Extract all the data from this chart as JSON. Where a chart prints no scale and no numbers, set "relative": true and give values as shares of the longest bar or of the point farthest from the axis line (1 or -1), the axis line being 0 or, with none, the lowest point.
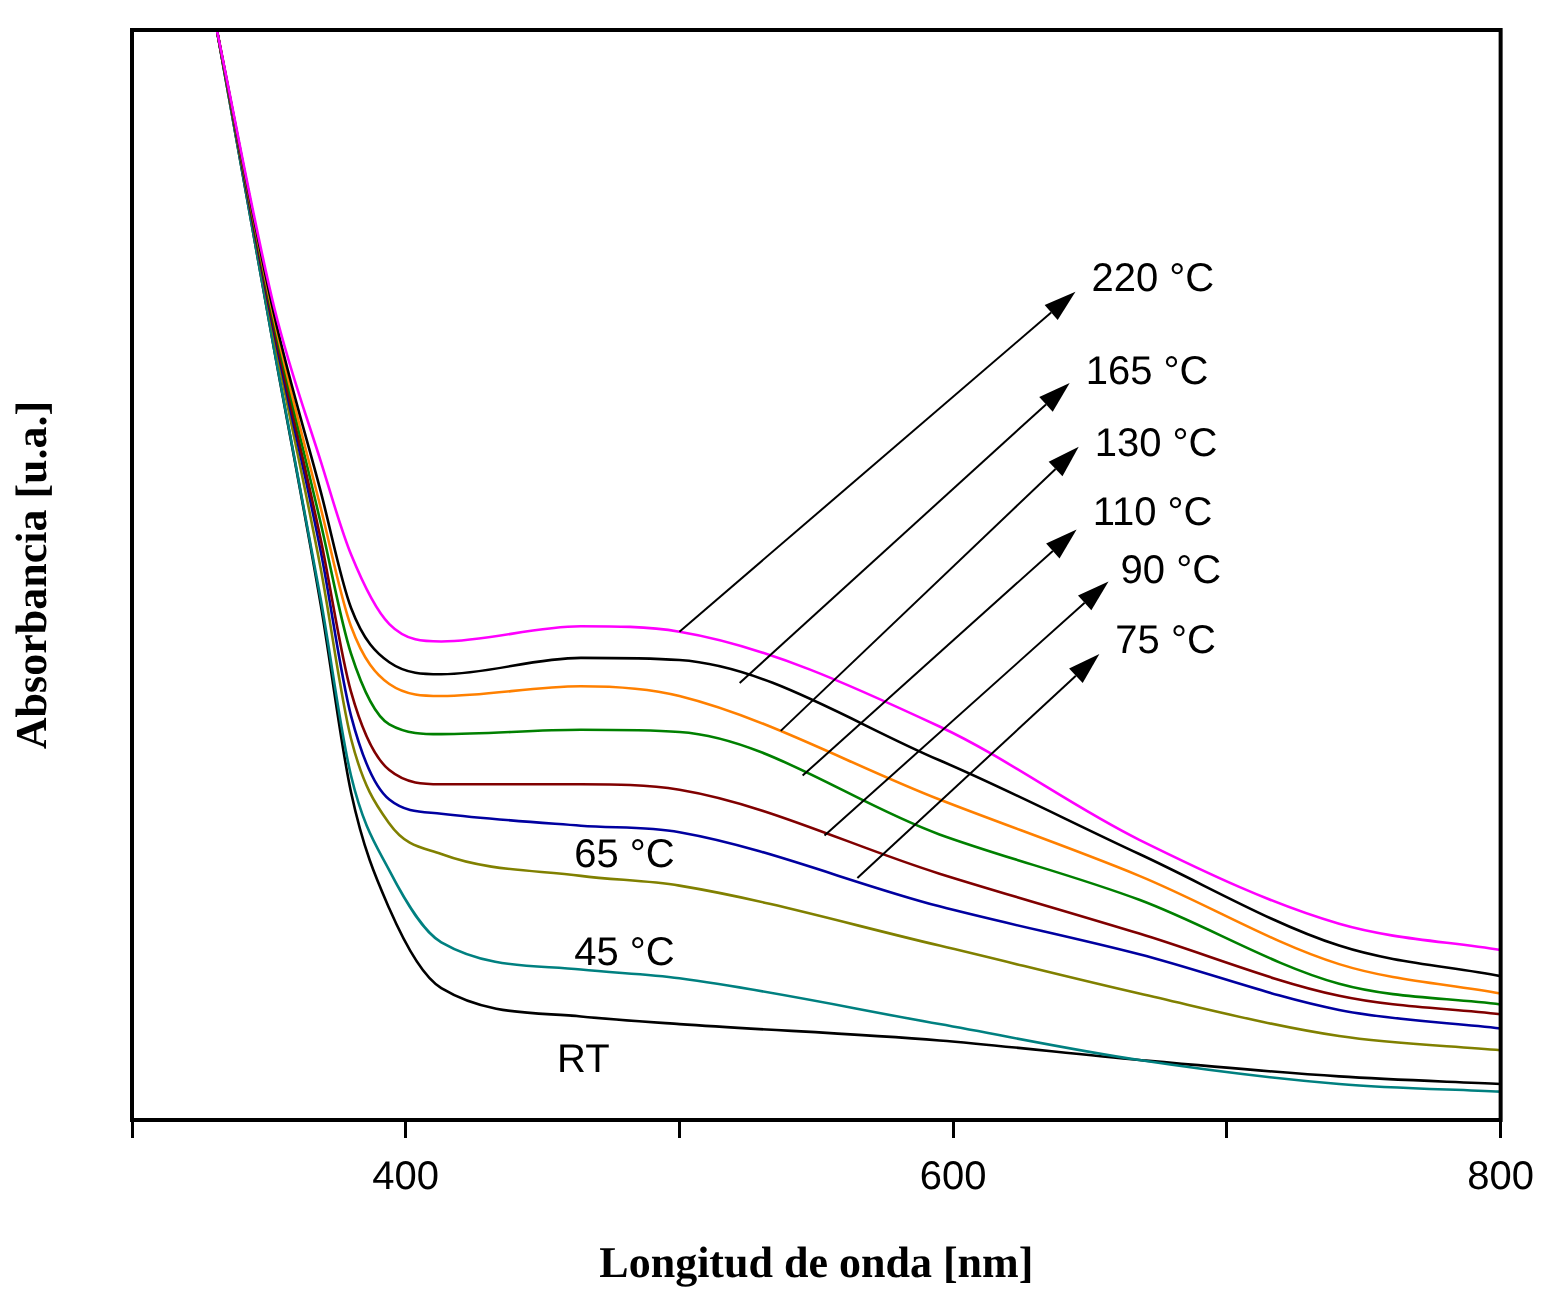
{
  "chart_data": {
    "type": "line",
    "relative": true,
    "xlabel": "Longitud de onda [nm]",
    "ylabel": "Absorbancia [u.a.]",
    "x": [
      331,
      352,
      369,
      380,
      394,
      413,
      464,
      500,
      595,
      668,
      741,
      800
    ],
    "xlim": [
      300,
      800
    ],
    "xticks": [
      {
        "value": 300,
        "label": null
      },
      400,
      {
        "value": 500,
        "label": null
      },
      600,
      {
        "value": 700,
        "label": null
      },
      800
    ],
    "tick_labels": "x",
    "marker": "none",
    "line_style": "solid",
    "series": [
      {
        "color": "#ff00ff",
        "values": [
          1,
          0.745,
          0.604,
          0.519,
          0.455,
          0.439,
          0.453,
          0.448,
          0.361,
          0.257,
          0.18,
          0.156
        ]
      },
      {
        "color": "#000000",
        "values": [
          1,
          0.738,
          0.576,
          0.47,
          0.42,
          0.409,
          0.424,
          0.422,
          0.33,
          0.244,
          0.16,
          0.132
        ]
      },
      {
        "color": "#ff8000",
        "values": [
          1,
          0.734,
          0.561,
          0.453,
          0.4,
          0.389,
          0.398,
          0.389,
          0.294,
          0.224,
          0.143,
          0.116
        ]
      },
      {
        "color": "#008000",
        "values": [
          1,
          0.73,
          0.547,
          0.428,
          0.363,
          0.354,
          0.358,
          0.356,
          0.262,
          0.202,
          0.125,
          0.106
        ]
      },
      {
        "color": "#800000",
        "values": [
          1,
          0.725,
          0.532,
          0.393,
          0.321,
          0.308,
          0.308,
          0.303,
          0.226,
          0.171,
          0.114,
          0.097
        ]
      },
      {
        "color": "#0000a0",
        "values": [
          1,
          0.721,
          0.521,
          0.371,
          0.294,
          0.281,
          0.27,
          0.264,
          0.196,
          0.152,
          0.101,
          0.084
        ]
      },
      {
        "color": "#808000",
        "values": [
          1,
          0.716,
          0.505,
          0.35,
          0.272,
          0.244,
          0.224,
          0.215,
          0.16,
          0.116,
          0.077,
          0.064
        ]
      },
      {
        "color": "#008080",
        "values": [
          1,
          0.706,
          0.477,
          0.316,
          0.229,
          0.163,
          0.138,
          0.13,
          0.088,
          0.055,
          0.033,
          0.026
        ]
      },
      {
        "color": "#000000",
        "values": [
          1,
          0.706,
          0.472,
          0.301,
          0.194,
          0.121,
          0.095,
          0.088,
          0.073,
          0.055,
          0.04,
          0.033
        ]
      }
    ],
    "annotations": [
      {
        "text": "220 °C",
        "x": 500,
        "y": 0.448
      },
      {
        "text": "165 °C",
        "x": 522,
        "y": 0.401
      },
      {
        "text": "130 °C",
        "x": 537,
        "y": 0.357
      },
      {
        "text": "110 °C",
        "x": 545,
        "y": 0.316
      },
      {
        "text": "90 °C",
        "x": 553,
        "y": 0.261
      },
      {
        "text": "75 °C",
        "x": 565,
        "y": 0.222
      },
      {
        "text": "65 °C",
        "x": 482,
        "y": 0.22
      },
      {
        "text": "45 °C",
        "x": 482,
        "y": 0.134
      },
      {
        "text": "RT",
        "x": 467,
        "y": 0.093
      }
    ]
  }
}
